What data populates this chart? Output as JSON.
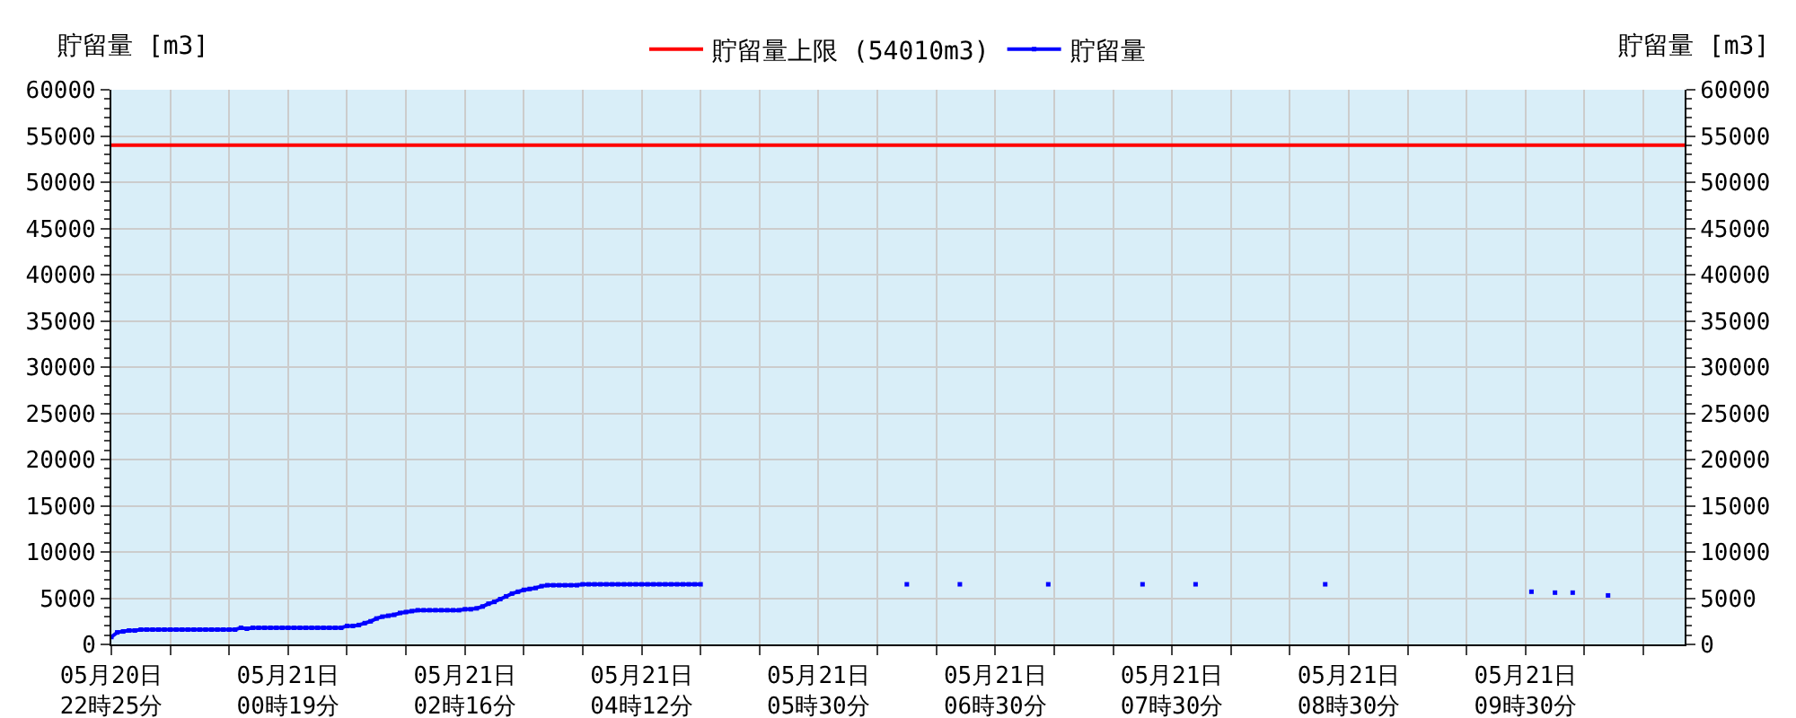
{
  "chart_data": {
    "type": "line",
    "ylabel": "貯留量 [m3]",
    "y2label": "貯留量 [m3]",
    "categories": [
      "05月20日\n22時25分",
      null,
      null,
      null,
      null,
      null,
      null,
      null,
      null,
      null,
      null,
      null,
      null,
      null,
      null,
      null,
      null,
      null,
      null,
      null,
      null,
      null,
      null,
      null,
      null,
      null,
      null,
      null,
      null,
      null,
      "05月21日\n00時19分",
      null,
      null,
      null,
      null,
      null,
      null,
      null,
      null,
      null,
      null,
      null,
      null,
      null,
      null,
      null,
      null,
      null,
      null,
      null,
      null,
      null,
      null,
      null,
      null,
      null,
      null,
      null,
      null,
      null,
      "05月21日\n02時16分",
      null,
      null,
      null,
      null,
      null,
      null,
      null,
      null,
      null,
      null,
      null,
      null,
      null,
      null,
      null,
      null,
      null,
      null,
      null,
      null,
      null,
      null,
      null,
      null,
      null,
      null,
      null,
      null,
      null,
      "05月21日\n04時12分",
      null,
      null,
      null,
      null,
      null,
      null,
      null,
      null,
      null,
      null,
      null,
      null,
      null,
      null,
      null,
      null,
      null,
      null,
      null,
      null,
      null,
      null,
      null,
      null,
      null,
      null,
      null,
      null,
      null,
      "05月21日\n05時30分",
      null,
      null,
      null,
      null,
      null,
      null,
      null,
      null,
      null,
      null,
      null,
      null,
      null,
      null,
      null,
      null,
      null,
      null,
      null,
      null,
      null,
      null,
      null,
      null,
      null,
      null,
      null,
      null,
      null,
      "05月21日\n06時30分",
      null,
      null,
      null,
      null,
      null,
      null,
      null,
      null,
      null,
      null,
      null,
      null,
      null,
      null,
      null,
      null,
      null,
      null,
      null,
      null,
      null,
      null,
      null,
      null,
      null,
      null,
      null,
      null,
      null,
      "05月21日\n07時30分",
      null,
      null,
      null,
      null,
      null,
      null,
      null,
      null,
      null,
      null,
      null,
      null,
      null,
      null,
      null,
      null,
      null,
      null,
      null,
      null,
      null,
      null,
      null,
      null,
      null,
      null,
      null,
      null,
      null,
      "05月21日\n08時30分",
      null,
      null,
      null,
      null,
      null,
      null,
      null,
      null,
      null,
      null,
      null,
      null,
      null,
      null,
      null,
      null,
      null,
      null,
      null,
      null,
      null,
      null,
      null,
      null,
      null,
      null,
      null,
      null,
      null,
      "05月21日\n09時30分",
      null,
      null,
      null,
      null,
      null,
      null,
      null,
      null,
      null,
      null,
      null,
      null,
      null,
      null,
      null,
      null,
      null,
      null,
      null,
      null,
      null,
      null,
      null,
      null,
      null,
      null,
      null
    ],
    "series": [
      {
        "name": "貯留量",
        "color": "#0000ff",
        "values": [
          800,
          1300,
          1400,
          1500,
          1500,
          1600,
          1600,
          1600,
          1600,
          1600,
          1600,
          1600,
          1600,
          1600,
          1600,
          1600,
          1600,
          1600,
          1600,
          1600,
          1600,
          1600,
          1800,
          1700,
          1800,
          1800,
          1800,
          1800,
          1800,
          1800,
          1800,
          1800,
          1800,
          1800,
          1800,
          1800,
          1800,
          1800,
          1800,
          1800,
          2000,
          2000,
          2100,
          2300,
          2500,
          2800,
          3000,
          3100,
          3200,
          3400,
          3500,
          3600,
          3700,
          3700,
          3700,
          3700,
          3700,
          3700,
          3700,
          3700,
          3800,
          3800,
          3900,
          4100,
          4400,
          4600,
          4900,
          5200,
          5500,
          5700,
          5900,
          6000,
          6100,
          6300,
          6400,
          6400,
          6400,
          6400,
          6400,
          6400,
          6500,
          6500,
          6500,
          6500,
          6500,
          6500,
          6500,
          6500,
          6500,
          6500,
          6500,
          6500,
          6500,
          6500,
          6500,
          6500,
          6500,
          6500,
          6500,
          6500,
          6500,
          null,
          null,
          null,
          null,
          null,
          null,
          null,
          null,
          null,
          null,
          null,
          null,
          null,
          null,
          null,
          null,
          null,
          null,
          null,
          null,
          null,
          null,
          null,
          null,
          null,
          null,
          null,
          null,
          null,
          null,
          null,
          null,
          null,
          null,
          6500,
          null,
          null,
          null,
          null,
          null,
          null,
          null,
          null,
          6500,
          null,
          null,
          null,
          null,
          null,
          null,
          null,
          null,
          null,
          null,
          null,
          null,
          null,
          null,
          6500,
          null,
          null,
          null,
          null,
          null,
          null,
          null,
          null,
          null,
          null,
          null,
          null,
          null,
          null,
          null,
          6500,
          null,
          null,
          null,
          null,
          null,
          null,
          null,
          null,
          6500,
          null,
          null,
          null,
          null,
          null,
          null,
          null,
          null,
          null,
          null,
          null,
          null,
          null,
          null,
          null,
          null,
          null,
          null,
          null,
          null,
          null,
          6500,
          null,
          null,
          null,
          null,
          null,
          null,
          null,
          null,
          null,
          null,
          null,
          null,
          null,
          null,
          null,
          null,
          null,
          null,
          null,
          null,
          null,
          null,
          null,
          null,
          null,
          null,
          null,
          null,
          null,
          null,
          null,
          null,
          null,
          null,
          5700,
          null,
          null,
          null,
          5600,
          null,
          null,
          5600,
          null,
          null,
          null,
          null,
          null,
          5300,
          null,
          null,
          null,
          null,
          null,
          null,
          null,
          null,
          null,
          null,
          null,
          null,
          null
        ]
      }
    ],
    "ref_lines": [
      {
        "axis": "y",
        "value": 54010,
        "label": "貯留量上限 (54010m3)",
        "color": "#ff0000"
      }
    ],
    "ylim": [
      0,
      60000
    ],
    "yticks": [
      0,
      5000,
      10000,
      15000,
      20000,
      25000,
      30000,
      35000,
      40000,
      45000,
      50000,
      55000,
      60000
    ],
    "y2lim": [
      0,
      60000
    ],
    "y2ticks": [
      0,
      5000,
      10000,
      15000,
      20000,
      25000,
      30000,
      35000,
      40000,
      45000,
      50000,
      55000,
      60000
    ],
    "marker": "square",
    "grid": true,
    "legend": "top"
  }
}
